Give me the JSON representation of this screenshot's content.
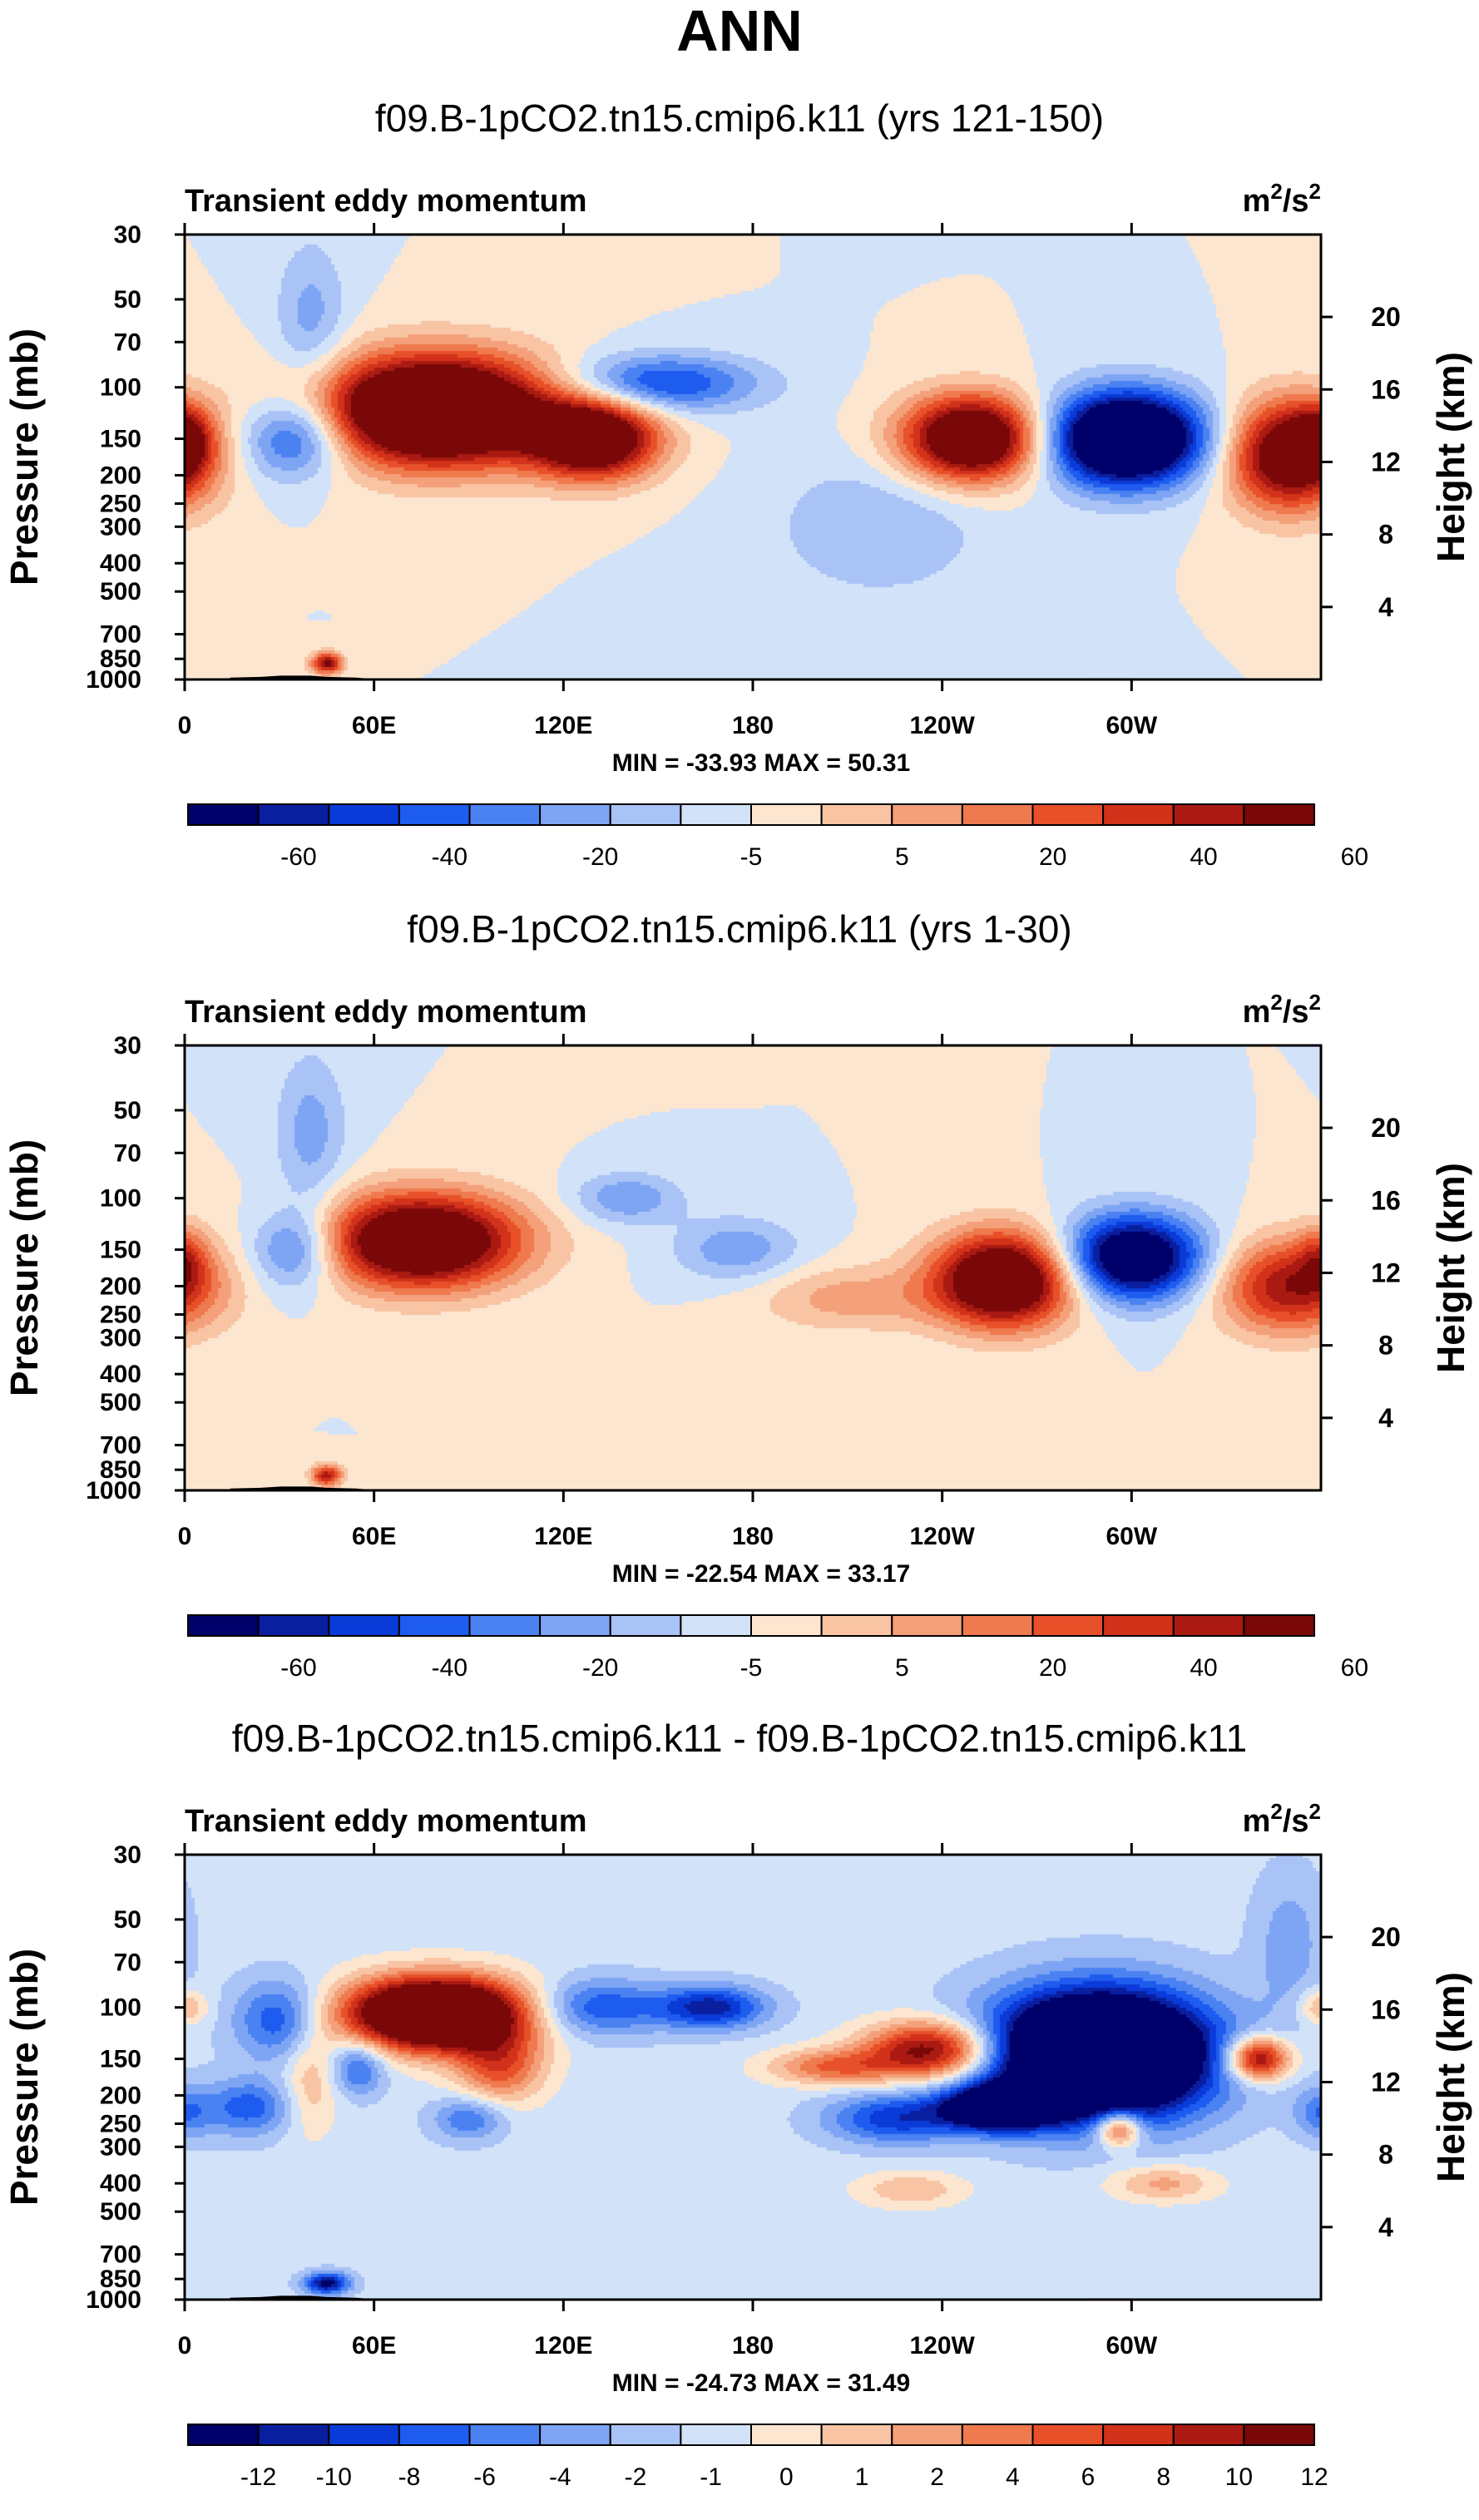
{
  "title": "ANN",
  "colors": {
    "scale": [
      "#00006a",
      "#0a1fa0",
      "#0a3bd8",
      "#1e5cf0",
      "#4b82f2",
      "#7ea4f4",
      "#a9c3f6",
      "#d2e2f8",
      "#fde6d0",
      "#f8c4a4",
      "#f4a07a",
      "#ef7a4e",
      "#e8502a",
      "#d2321a",
      "#aa1a12",
      "#7a0808"
    ],
    "land": "#000000"
  },
  "chart_data": [
    {
      "type": "heatmap",
      "title": "f09.B-1pCO2.tn15.cmip6.k11 (yrs 121-150)",
      "left_label": "Transient eddy momentum",
      "units_base": "m",
      "units_exp1": "2",
      "units_mid": "/s",
      "units_exp2": "2",
      "ylabel": "Pressure (mb)",
      "y2label": "Height (km)",
      "xticks": [
        "0",
        "60E",
        "120E",
        "180",
        "120W",
        "60W"
      ],
      "xtick_lon": [
        0,
        60,
        120,
        180,
        240,
        300
      ],
      "xlim": [
        0,
        360
      ],
      "yticks": [
        "30",
        "50",
        "70",
        "100",
        "150",
        "200",
        "250",
        "300",
        "400",
        "500",
        "700",
        "850",
        "1000"
      ],
      "ytick_p": [
        30,
        50,
        70,
        100,
        150,
        200,
        250,
        300,
        400,
        500,
        700,
        850,
        1000
      ],
      "ylim": [
        30,
        1000
      ],
      "height_ticks": [
        "4",
        "8",
        "12",
        "16",
        "20"
      ],
      "height_km": [
        4,
        8,
        12,
        16,
        20
      ],
      "stats": "MIN = -33.93  MAX = 50.31",
      "levels": [
        "-60",
        "-40",
        "-20",
        "-5",
        "5",
        "20",
        "40",
        "60"
      ],
      "background": 8,
      "blobs": [
        {
          "lon": 80,
          "p": 120,
          "w": 26,
          "h": 0.3,
          "amp": 14.5
        },
        {
          "lon": 130,
          "p": 150,
          "w": 14,
          "h": 0.22,
          "amp": 10.5
        },
        {
          "lon": 150,
          "p": 97,
          "w": 22,
          "h": 0.16,
          "amp": 5.5,
          "neg": true
        },
        {
          "lon": 35,
          "p": 150,
          "w": 12,
          "h": 0.22,
          "amp": 5.5,
          "neg": true
        },
        {
          "lon": 250,
          "p": 150,
          "w": 16,
          "h": 0.24,
          "amp": 11.5
        },
        {
          "lon": 298,
          "p": 150,
          "w": 18,
          "h": 0.26,
          "amp": 13.5,
          "neg": true
        },
        {
          "lon": 350,
          "p": 170,
          "w": 14,
          "h": 0.3,
          "amp": 10
        },
        {
          "lon": 0,
          "p": 150,
          "w": 6,
          "h": 0.18,
          "amp": 4
        },
        {
          "lon": 45,
          "p": 880,
          "w": 3.5,
          "h": 0.06,
          "amp": 7.5
        },
        {
          "lon": 40,
          "p": 60,
          "w": 8,
          "h": 0.45,
          "amp": 2.5,
          "neg": true
        },
        {
          "lon": 220,
          "p": 300,
          "w": 24,
          "h": 0.4,
          "amp": 2.0,
          "neg": true
        }
      ]
    },
    {
      "type": "heatmap",
      "title": "f09.B-1pCO2.tn15.cmip6.k11 (yrs 1-30)",
      "left_label": "Transient eddy momentum",
      "units_base": "m",
      "units_exp1": "2",
      "units_mid": "/s",
      "units_exp2": "2",
      "ylabel": "Pressure (mb)",
      "y2label": "Height (km)",
      "xticks": [
        "0",
        "60E",
        "120E",
        "180",
        "120W",
        "60W"
      ],
      "xtick_lon": [
        0,
        60,
        120,
        180,
        240,
        300
      ],
      "xlim": [
        0,
        360
      ],
      "yticks": [
        "30",
        "50",
        "70",
        "100",
        "150",
        "200",
        "250",
        "300",
        "400",
        "500",
        "700",
        "850",
        "1000"
      ],
      "ytick_p": [
        30,
        50,
        70,
        100,
        150,
        200,
        250,
        300,
        400,
        500,
        700,
        850,
        1000
      ],
      "ylim": [
        30,
        1000
      ],
      "height_ticks": [
        "4",
        "8",
        "12",
        "16",
        "20"
      ],
      "height_km": [
        4,
        8,
        12,
        16,
        20
      ],
      "stats": "MIN = -22.54  MAX = 33.17",
      "levels": [
        "-60",
        "-40",
        "-20",
        "-5",
        "5",
        "20",
        "40",
        "60"
      ],
      "background": 8,
      "blobs": [
        {
          "lon": 75,
          "p": 140,
          "w": 22,
          "h": 0.26,
          "amp": 11.5
        },
        {
          "lon": 140,
          "p": 100,
          "w": 12,
          "h": 0.14,
          "amp": 3,
          "neg": true
        },
        {
          "lon": 175,
          "p": 150,
          "w": 14,
          "h": 0.18,
          "amp": 2.8,
          "neg": true
        },
        {
          "lon": 35,
          "p": 150,
          "w": 10,
          "h": 0.22,
          "amp": 4.5,
          "neg": true
        },
        {
          "lon": 260,
          "p": 190,
          "w": 16,
          "h": 0.26,
          "amp": 11.5
        },
        {
          "lon": 300,
          "p": 160,
          "w": 16,
          "h": 0.24,
          "amp": 10.5,
          "neg": true
        },
        {
          "lon": 350,
          "p": 200,
          "w": 16,
          "h": 0.26,
          "amp": 7
        },
        {
          "lon": 0,
          "p": 160,
          "w": 5,
          "h": 0.18,
          "amp": 3
        },
        {
          "lon": 210,
          "p": 220,
          "w": 20,
          "h": 0.18,
          "amp": 2.5
        },
        {
          "lon": 45,
          "p": 890,
          "w": 3.5,
          "h": 0.06,
          "amp": 6.5
        },
        {
          "lon": 40,
          "p": 60,
          "w": 8,
          "h": 0.45,
          "amp": 2.5,
          "neg": true
        }
      ]
    },
    {
      "type": "heatmap",
      "title": "f09.B-1pCO2.tn15.cmip6.k11 - f09.B-1pCO2.tn15.cmip6.k11",
      "left_label": "Transient eddy momentum",
      "units_base": "m",
      "units_exp1": "2",
      "units_mid": "/s",
      "units_exp2": "2",
      "ylabel": "Pressure (mb)",
      "y2label": "Height (km)",
      "xticks": [
        "0",
        "60E",
        "120E",
        "180",
        "120W",
        "60W"
      ],
      "xtick_lon": [
        0,
        60,
        120,
        180,
        240,
        300
      ],
      "xlim": [
        0,
        360
      ],
      "yticks": [
        "30",
        "50",
        "70",
        "100",
        "150",
        "200",
        "250",
        "300",
        "400",
        "500",
        "700",
        "850",
        "1000"
      ],
      "ytick_p": [
        30,
        50,
        70,
        100,
        150,
        200,
        250,
        300,
        400,
        500,
        700,
        850,
        1000
      ],
      "ylim": [
        30,
        1000
      ],
      "height_ticks": [
        "4",
        "8",
        "12",
        "16",
        "20"
      ],
      "height_km": [
        4,
        8,
        12,
        16,
        20
      ],
      "stats": "MIN = -24.73  MAX = 31.49",
      "levels": [
        "-12",
        "-10",
        "-8",
        "-6",
        "-4",
        "-2",
        "-1",
        "0",
        "1",
        "2",
        "4",
        "6",
        "8",
        "10",
        "12"
      ],
      "background": 7.4,
      "blobs": [
        {
          "lon": 80,
          "p": 105,
          "w": 20,
          "h": 0.2,
          "amp": 16
        },
        {
          "lon": 100,
          "p": 160,
          "w": 10,
          "h": 0.2,
          "amp": 5
        },
        {
          "lon": 30,
          "p": 110,
          "w": 10,
          "h": 0.22,
          "amp": 4.5,
          "neg": true
        },
        {
          "lon": 20,
          "p": 220,
          "w": 10,
          "h": 0.16,
          "amp": 4,
          "neg": true
        },
        {
          "lon": 55,
          "p": 160,
          "w": 6,
          "h": 0.15,
          "amp": 4,
          "neg": true
        },
        {
          "lon": 90,
          "p": 240,
          "w": 8,
          "h": 0.12,
          "amp": 3.5,
          "neg": true
        },
        {
          "lon": 130,
          "p": 100,
          "w": 15,
          "h": 0.16,
          "amp": 4.5,
          "neg": true
        },
        {
          "lon": 167,
          "p": 100,
          "w": 12,
          "h": 0.12,
          "amp": 6,
          "neg": true
        },
        {
          "lon": 237,
          "p": 140,
          "w": 15,
          "h": 0.16,
          "amp": 9
        },
        {
          "lon": 205,
          "p": 160,
          "w": 14,
          "h": 0.1,
          "amp": 4.5
        },
        {
          "lon": 290,
          "p": 145,
          "w": 24,
          "h": 0.34,
          "amp": 18,
          "neg": true
        },
        {
          "lon": 258,
          "p": 220,
          "w": 12,
          "h": 0.12,
          "amp": 11,
          "neg": true
        },
        {
          "lon": 225,
          "p": 240,
          "w": 15,
          "h": 0.14,
          "amp": 5,
          "neg": true
        },
        {
          "lon": 296,
          "p": 260,
          "w": 5,
          "h": 0.1,
          "amp": 7
        },
        {
          "lon": 340,
          "p": 150,
          "w": 7,
          "h": 0.12,
          "amp": 9
        },
        {
          "lon": 0,
          "p": 230,
          "w": 6,
          "h": 0.14,
          "amp": 3,
          "neg": true
        },
        {
          "lon": 0,
          "p": 100,
          "w": 5,
          "h": 0.1,
          "amp": 3
        },
        {
          "lon": 45,
          "p": 880,
          "w": 5,
          "h": 0.06,
          "amp": 7,
          "neg": true
        },
        {
          "lon": 310,
          "p": 400,
          "w": 12,
          "h": 0.1,
          "amp": 3
        },
        {
          "lon": 230,
          "p": 420,
          "w": 12,
          "h": 0.1,
          "amp": 2.5
        },
        {
          "lon": 350,
          "p": 60,
          "w": 8,
          "h": 0.4,
          "amp": 2,
          "neg": true
        },
        {
          "lon": 40,
          "p": 180,
          "w": 6,
          "h": 0.3,
          "amp": 2.5
        }
      ]
    }
  ]
}
